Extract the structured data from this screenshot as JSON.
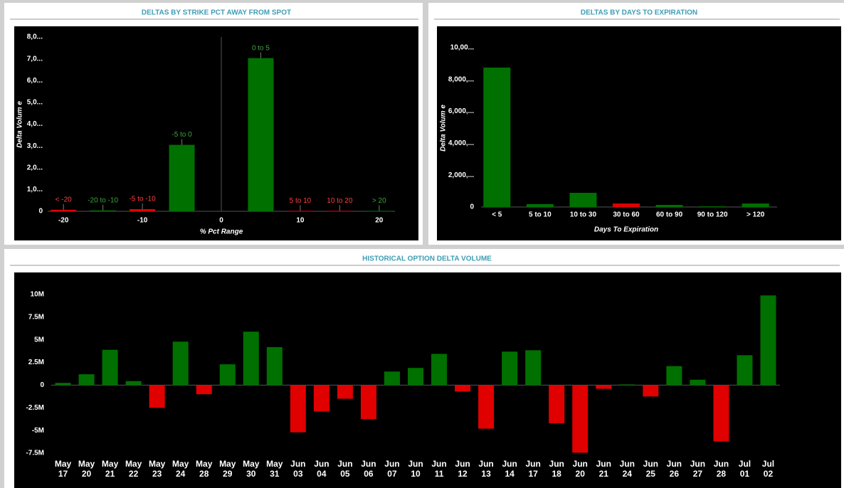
{
  "chart_data": [
    {
      "type": "bar",
      "title": "DELTAS BY STRIKE PCT AWAY FROM SPOT",
      "x_label": "% Pct Range",
      "y_label": "Delta Volum e",
      "x": [
        -20,
        -15,
        -10,
        -5,
        5,
        10,
        15,
        20
      ],
      "labels": [
        "< -20",
        "-20 to -10",
        "-5 to -10",
        "-5 to 0",
        "0 to 5",
        "5 to 10",
        "10 to 20",
        "> 20"
      ],
      "values": [
        70,
        40,
        100,
        3050,
        7030,
        20,
        20,
        20
      ],
      "colors": [
        "#e00000",
        "#007000",
        "#e00000",
        "#007000",
        "#007000",
        "#e00000",
        "#e00000",
        "#007000"
      ],
      "label_colors": [
        "#ff4040",
        "#3aa83a",
        "#ff4040",
        "#3aa83a",
        "#3aa83a",
        "#ff4040",
        "#ff4040",
        "#3aa83a"
      ],
      "xlim": [
        -22,
        22
      ],
      "xticks": [
        -20,
        -10,
        0,
        10,
        20
      ],
      "ylim": [
        0,
        8000
      ],
      "yticks": [
        0,
        {
          "value": 1000,
          "label": "1,0..."
        },
        {
          "value": 2000,
          "label": "2,0..."
        },
        {
          "value": 3000,
          "label": "3,0..."
        },
        {
          "value": 4000,
          "label": "4,0..."
        },
        {
          "value": 5000,
          "label": "5,0..."
        },
        {
          "value": 6000,
          "label": "6,0..."
        },
        {
          "value": 7000,
          "label": "7,0..."
        },
        {
          "value": 8000,
          "label": "8,0..."
        }
      ]
    },
    {
      "type": "bar",
      "title": "DELTAS BY DAYS TO EXPIRATION",
      "x_label": "Days To Expiration",
      "y_label": "Delta Volum e",
      "categories": [
        "< 5",
        "5 to 10",
        "10 to 30",
        "30 to 60",
        "60 to 90",
        "90 to 120",
        "> 120"
      ],
      "values": [
        8750,
        180,
        890,
        220,
        130,
        40,
        220
      ],
      "colors": [
        "#007000",
        "#007000",
        "#007000",
        "#e00000",
        "#007000",
        "#007000",
        "#007000"
      ],
      "ylim": [
        0,
        10000
      ],
      "yticks": [
        0,
        {
          "value": 2000,
          "label": "2,000,..."
        },
        {
          "value": 4000,
          "label": "4,000,..."
        },
        {
          "value": 6000,
          "label": "6,000,..."
        },
        {
          "value": 8000,
          "label": "8,000,..."
        },
        {
          "value": 10000,
          "label": "10,00..."
        }
      ]
    },
    {
      "type": "bar",
      "title": "HISTORICAL OPTION DELTA VOLUME",
      "categories": [
        "May 17",
        "May 20",
        "May 21",
        "May 22",
        "May 23",
        "May 24",
        "May 28",
        "May 29",
        "May 30",
        "May 31",
        "Jun 03",
        "Jun 04",
        "Jun 05",
        "Jun 06",
        "Jun 07",
        "Jun 10",
        "Jun 11",
        "Jun 12",
        "Jun 13",
        "Jun 14",
        "Jun 17",
        "Jun 18",
        "Jun 20",
        "Jun 21",
        "Jun 24",
        "Jun 25",
        "Jun 26",
        "Jun 27",
        "Jun 28",
        "Jul 01",
        "Jul 02"
      ],
      "values": [
        250000,
        1200000,
        3900000,
        450000,
        -2500000,
        4800000,
        -1000000,
        2300000,
        5900000,
        4200000,
        -5200000,
        -2900000,
        -1500000,
        -3750000,
        1500000,
        1900000,
        3450000,
        -700000,
        -4800000,
        3700000,
        3850000,
        -4200000,
        -7450000,
        -400000,
        80000,
        -1250000,
        2100000,
        600000,
        -6200000,
        3300000,
        9900000
      ],
      "positive_color": "#007000",
      "negative_color": "#e00000",
      "ylim": [
        -7500000,
        10000000
      ],
      "yticks": [
        {
          "value": -7500000,
          "label": "-7.5M"
        },
        {
          "value": -5000000,
          "label": "-5M"
        },
        {
          "value": -2500000,
          "label": "-2.5M"
        },
        0,
        {
          "value": 2500000,
          "label": "2.5M"
        },
        {
          "value": 5000000,
          "label": "5M"
        },
        {
          "value": 7500000,
          "label": "7.5M"
        },
        {
          "value": 10000000,
          "label": "10M"
        }
      ]
    }
  ]
}
